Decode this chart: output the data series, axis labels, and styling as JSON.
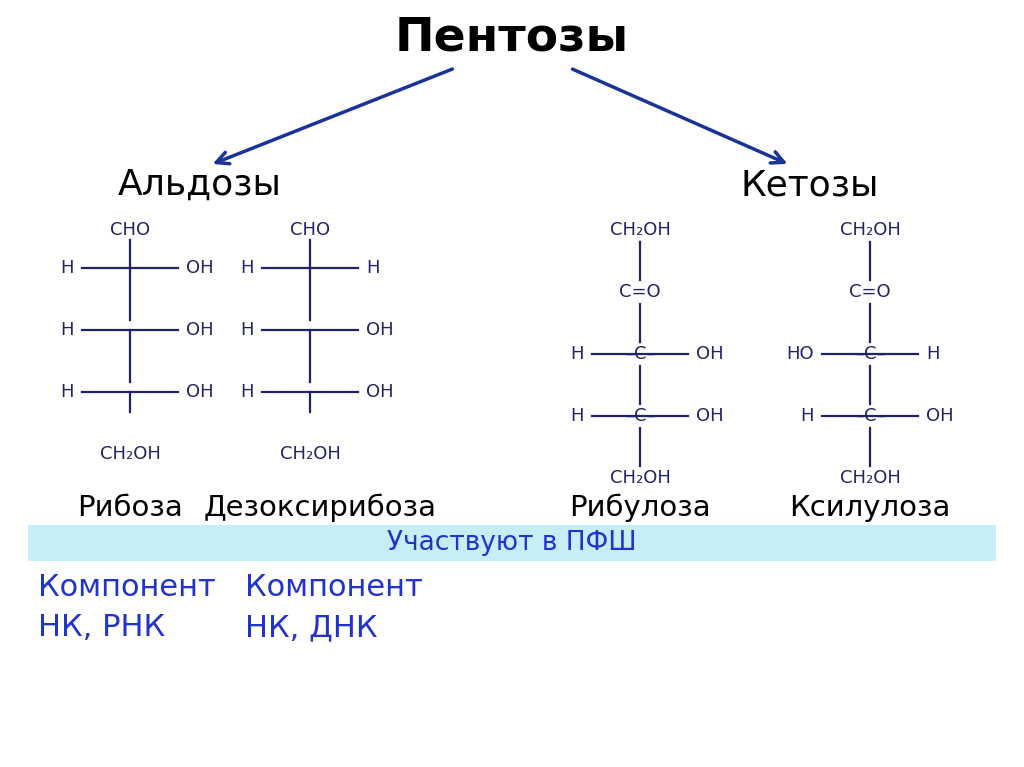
{
  "title": "Пентозы",
  "title_fontsize": 34,
  "subtitle_aldozy": "Альдозы",
  "subtitle_ketozy": "Кетозы",
  "subtitle_fontsize": 26,
  "label_riboza": "Рибоза",
  "label_dezoksiriboza": "Дезоксирибоза",
  "label_ribuloza": "Рибулоза",
  "label_ksiluloza": "Ксилулоза",
  "label_fontsize": 21,
  "banner_text": "Участвуют в ПФШ",
  "banner_fontsize": 19,
  "banner_color": "#c5eef7",
  "text_color_blue": "#2233cc",
  "text_color_black": "#000000",
  "arrow_color": "#1a3399",
  "note1_line1": "Компонент",
  "note1_line2": "НК, РНК",
  "note2_line1": "Компонент",
  "note2_line2": "НК, ДНК",
  "note_fontsize": 22,
  "bg_color": "#ffffff",
  "struct_fontsize": 13,
  "struct_color": "#222266"
}
